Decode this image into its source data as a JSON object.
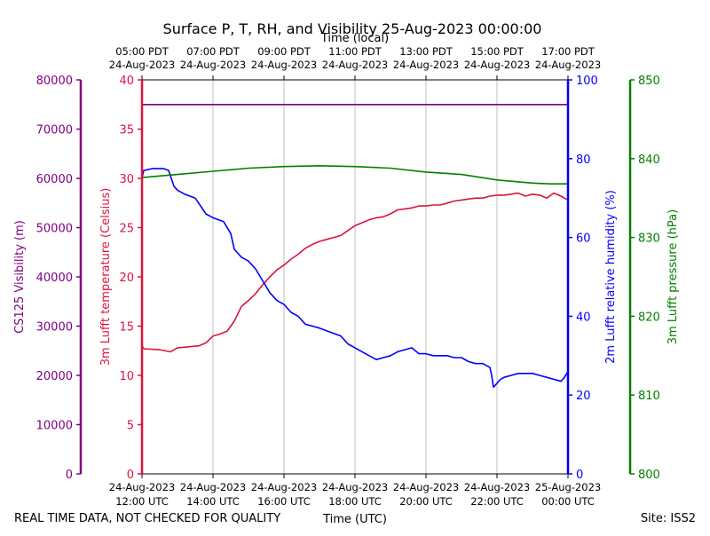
{
  "chart_data": {
    "type": "line",
    "title": "Surface P, T, RH, and Visibility 25-Aug-2023 00:00:00",
    "top_axis_label": "Time (local)",
    "xlabel": "Time (UTC)",
    "footer_left": "REAL TIME DATA, NOT CHECKED FOR QUALITY",
    "footer_right": "Site: ISS2",
    "x_range_hours_utc": [
      12,
      24
    ],
    "x_ticks_utc": [
      {
        "hour": 12,
        "line1": "24-Aug-2023",
        "line2": "12:00 UTC"
      },
      {
        "hour": 14,
        "line1": "24-Aug-2023",
        "line2": "14:00 UTC"
      },
      {
        "hour": 16,
        "line1": "24-Aug-2023",
        "line2": "16:00 UTC"
      },
      {
        "hour": 18,
        "line1": "24-Aug-2023",
        "line2": "18:00 UTC"
      },
      {
        "hour": 20,
        "line1": "24-Aug-2023",
        "line2": "20:00 UTC"
      },
      {
        "hour": 22,
        "line1": "24-Aug-2023",
        "line2": "22:00 UTC"
      },
      {
        "hour": 24,
        "line1": "25-Aug-2023",
        "line2": "00:00 UTC"
      }
    ],
    "x_ticks_local": [
      {
        "hour": 12,
        "line1": "05:00 PDT",
        "line2": "24-Aug-2023"
      },
      {
        "hour": 14,
        "line1": "07:00 PDT",
        "line2": "24-Aug-2023"
      },
      {
        "hour": 16,
        "line1": "09:00 PDT",
        "line2": "24-Aug-2023"
      },
      {
        "hour": 18,
        "line1": "11:00 PDT",
        "line2": "24-Aug-2023"
      },
      {
        "hour": 20,
        "line1": "13:00 PDT",
        "line2": "24-Aug-2023"
      },
      {
        "hour": 22,
        "line1": "15:00 PDT",
        "line2": "24-Aug-2023"
      },
      {
        "hour": 24,
        "line1": "17:00 PDT",
        "line2": "24-Aug-2023"
      }
    ],
    "grid": true,
    "axes": [
      {
        "key": "visibility",
        "label": "CS125 Visibility (m)",
        "ylim": [
          0,
          80000
        ],
        "ticks": [
          "0",
          "10000",
          "20000",
          "30000",
          "40000",
          "50000",
          "60000",
          "70000",
          "80000"
        ],
        "color": "#800080",
        "side": "left-outer"
      },
      {
        "key": "temperature",
        "label": "3m Lufft temperature (Celsius)",
        "ylim": [
          0,
          40
        ],
        "ticks": [
          "0",
          "5",
          "10",
          "15",
          "20",
          "25",
          "30",
          "35",
          "40"
        ],
        "color": "#dc143c",
        "side": "left-inner"
      },
      {
        "key": "humidity",
        "label": "2m Lufft relative humidity (%)",
        "ylim": [
          0,
          100
        ],
        "ticks": [
          "0",
          "20",
          "40",
          "60",
          "80",
          "100"
        ],
        "color": "#0000ff",
        "side": "right-inner"
      },
      {
        "key": "pressure",
        "label": "3m Lufft pressure (hPa)",
        "ylim": [
          800,
          850
        ],
        "ticks": [
          "800",
          "810",
          "820",
          "830",
          "840",
          "850"
        ],
        "color": "#008000",
        "side": "right-outer"
      }
    ],
    "series": [
      {
        "axis": "visibility",
        "color": "#800080",
        "x": [
          12,
          24
        ],
        "y": [
          75000,
          75000
        ]
      },
      {
        "axis": "temperature",
        "color": "#dc143c",
        "x": [
          12,
          12.05,
          12.5,
          12.8,
          13.0,
          13.3,
          13.6,
          13.8,
          14.0,
          14.2,
          14.4,
          14.6,
          14.8,
          15.0,
          15.2,
          15.4,
          15.6,
          15.8,
          16.0,
          16.2,
          16.4,
          16.6,
          16.8,
          17.0,
          17.2,
          17.4,
          17.6,
          17.8,
          18.0,
          18.2,
          18.4,
          18.6,
          18.8,
          19.0,
          19.2,
          19.4,
          19.6,
          19.8,
          20.0,
          20.2,
          20.4,
          20.6,
          20.8,
          21.0,
          21.2,
          21.4,
          21.6,
          21.8,
          22.0,
          22.2,
          22.4,
          22.6,
          22.8,
          23.0,
          23.2,
          23.4,
          23.6,
          23.8,
          24.0
        ],
        "y": [
          13.0,
          12.7,
          12.6,
          12.4,
          12.8,
          12.9,
          13.0,
          13.3,
          14.0,
          14.2,
          14.5,
          15.5,
          17.0,
          17.6,
          18.3,
          19.2,
          20.0,
          20.7,
          21.2,
          21.8,
          22.3,
          22.9,
          23.3,
          23.6,
          23.8,
          24.0,
          24.2,
          24.7,
          25.2,
          25.5,
          25.8,
          26.0,
          26.1,
          26.4,
          26.8,
          26.9,
          27.0,
          27.2,
          27.2,
          27.3,
          27.3,
          27.5,
          27.7,
          27.8,
          27.9,
          28.0,
          28.0,
          28.2,
          28.3,
          28.3,
          28.4,
          28.5,
          28.2,
          28.4,
          28.3,
          28.0,
          28.5,
          28.2,
          27.8
        ]
      },
      {
        "axis": "humidity",
        "color": "#0000ff",
        "x": [
          12,
          12.05,
          12.3,
          12.6,
          12.75,
          12.9,
          13.0,
          13.2,
          13.5,
          13.8,
          14.0,
          14.3,
          14.5,
          14.6,
          14.8,
          15.0,
          15.2,
          15.4,
          15.6,
          15.8,
          16.0,
          16.2,
          16.4,
          16.6,
          16.8,
          17.0,
          17.3,
          17.6,
          17.8,
          18.0,
          18.2,
          18.4,
          18.6,
          18.8,
          19.0,
          19.2,
          19.4,
          19.6,
          19.8,
          20.0,
          20.2,
          20.4,
          20.6,
          20.8,
          21.0,
          21.2,
          21.4,
          21.6,
          21.8,
          21.85,
          21.9,
          22.0,
          22.1,
          22.2,
          22.4,
          22.6,
          22.8,
          23.0,
          23.2,
          23.4,
          23.6,
          23.8,
          23.9,
          24.0
        ],
        "y": [
          75,
          77,
          77.5,
          77.5,
          77,
          73,
          72,
          71,
          70,
          66,
          65,
          64,
          61,
          57,
          55,
          54,
          52,
          49,
          46,
          44,
          43,
          41,
          40,
          38,
          37.5,
          37,
          36,
          35,
          33,
          32,
          31,
          30,
          29,
          29.5,
          30,
          31,
          31.5,
          32,
          30.5,
          30.5,
          30,
          30,
          30,
          29.5,
          29.5,
          28.5,
          28,
          28,
          27,
          25,
          22,
          23,
          24,
          24.5,
          25,
          25.5,
          25.5,
          25.5,
          25,
          24.5,
          24,
          23.5,
          24.5,
          26
        ]
      },
      {
        "axis": "pressure",
        "color": "#008000",
        "x": [
          12,
          13,
          14,
          15,
          16,
          17,
          18,
          19,
          20,
          21,
          22,
          22.5,
          23,
          23.5,
          24
        ],
        "y": [
          837.6,
          838.0,
          838.4,
          838.8,
          839.0,
          839.1,
          839.0,
          838.8,
          838.3,
          838.0,
          837.3,
          837.1,
          836.9,
          836.8,
          836.8
        ]
      }
    ]
  },
  "colors": {
    "visibility": "#800080",
    "temperature": "#dc143c",
    "humidity": "#0000ff",
    "pressure": "#008000"
  }
}
